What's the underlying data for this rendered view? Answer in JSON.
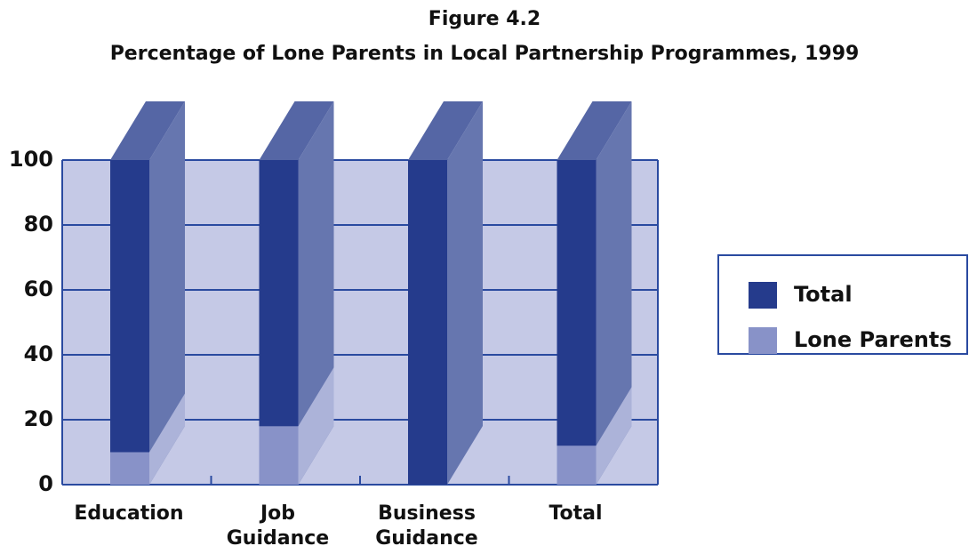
{
  "chart_data": {
    "type": "bar",
    "title": "Figure 4.2",
    "subtitle": "Percentage of Lone Parents in Local Partnership Programmes, 1999",
    "categories": [
      "Education",
      "Job Guidance",
      "Business Guidance",
      "Total"
    ],
    "series": [
      {
        "name": "Total",
        "color": "#253b8c",
        "values": [
          100,
          100,
          100,
          100
        ]
      },
      {
        "name": "Lone Parents",
        "color": "#8892c8",
        "values": [
          10,
          18,
          0,
          12
        ]
      }
    ],
    "ylim": [
      0,
      100
    ],
    "yticks": [
      0,
      20,
      40,
      60,
      80,
      100
    ],
    "grid": true,
    "legend": "right"
  }
}
